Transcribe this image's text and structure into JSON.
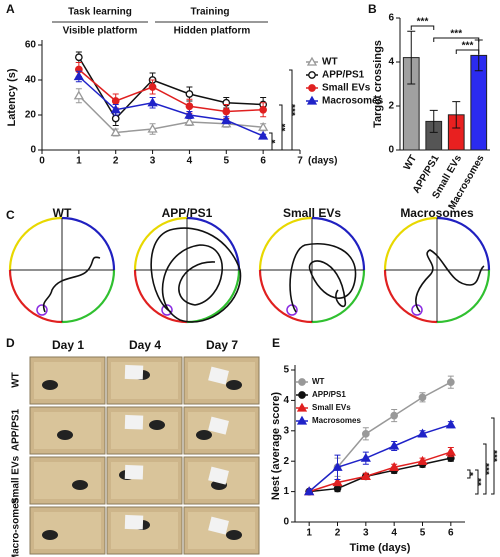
{
  "panels": [
    "A",
    "B",
    "C",
    "D",
    "E"
  ],
  "chart_data": [
    {
      "type": "line",
      "x": [
        1,
        2,
        3,
        4,
        5,
        6
      ],
      "xlim": [
        0,
        7
      ],
      "xticks": [
        0,
        1,
        2,
        3,
        4,
        5,
        6,
        7
      ],
      "x_label": "(days)",
      "y_label": "Latency (s)",
      "ylim": [
        0,
        60
      ],
      "yticks": [
        0,
        20,
        40,
        60
      ],
      "annotations": [
        "Task learning",
        "Visible platform",
        "Training",
        "Hidden platform"
      ],
      "significance": [
        "*",
        "**",
        "***"
      ],
      "series": [
        {
          "name": "WT",
          "color": "#999999",
          "marker": "triangle-open",
          "values": [
            31,
            10,
            12,
            16,
            15,
            13
          ],
          "errors": [
            4,
            2,
            3,
            2,
            2,
            2
          ]
        },
        {
          "name": "APP/PS1",
          "color": "#111111",
          "marker": "circle-open",
          "values": [
            53,
            18,
            40,
            32,
            27,
            26
          ],
          "errors": [
            3,
            4,
            4,
            4,
            3,
            4
          ]
        },
        {
          "name": "Small EVs",
          "color": "#e02020",
          "marker": "circle",
          "values": [
            46,
            28,
            36,
            25,
            22,
            23
          ],
          "errors": [
            4,
            4,
            4,
            4,
            4,
            4
          ]
        },
        {
          "name": "Macrosomes",
          "color": "#1f22c8",
          "marker": "triangle",
          "values": [
            42,
            23,
            27,
            20,
            17,
            8
          ],
          "errors": [
            3,
            3,
            3,
            2,
            2,
            1
          ]
        }
      ]
    },
    {
      "type": "bar",
      "categories": [
        "WT",
        "APP/PS1",
        "Small EVs",
        "Macrosomes"
      ],
      "values": [
        4.2,
        1.3,
        1.6,
        4.3
      ],
      "errors": [
        1.2,
        0.5,
        0.6,
        0.7
      ],
      "colors": [
        "#a0a0a0",
        "#555555",
        "#e82020",
        "#2b2bf0"
      ],
      "y_label": "Target crossings",
      "ylim": [
        0,
        6
      ],
      "yticks": [
        0,
        2,
        4,
        6
      ],
      "significance": [
        "***",
        "***",
        "***"
      ]
    },
    {
      "type": "line",
      "x": [
        1,
        2,
        3,
        4,
        5,
        6
      ],
      "xlim": [
        0.5,
        6.5
      ],
      "xticks": [
        1,
        2,
        3,
        4,
        5,
        6
      ],
      "x_label": "Time (days)",
      "y_label": "Nest (average score)",
      "ylim": [
        0,
        5
      ],
      "yticks": [
        0,
        1,
        2,
        3,
        4,
        5
      ],
      "significance": [
        "*",
        "**",
        "***",
        "***"
      ],
      "series": [
        {
          "name": "WT",
          "color": "#999999",
          "marker": "circle",
          "values": [
            1,
            1.8,
            2.9,
            3.5,
            4.1,
            4.6
          ],
          "errors": [
            0.05,
            0.3,
            0.2,
            0.2,
            0.15,
            0.2
          ]
        },
        {
          "name": "APP/PS1",
          "color": "#111111",
          "marker": "circle",
          "values": [
            1,
            1.1,
            1.5,
            1.7,
            1.9,
            2.1
          ],
          "errors": [
            0.05,
            0.1,
            0.1,
            0.1,
            0.1,
            0.1
          ]
        },
        {
          "name": "Small EVs",
          "color": "#e02020",
          "marker": "triangle",
          "values": [
            1,
            1.3,
            1.5,
            1.8,
            2.0,
            2.3
          ],
          "errors": [
            0.05,
            0.1,
            0.1,
            0.1,
            0.1,
            0.15
          ]
        },
        {
          "name": "Macrosomes",
          "color": "#1f22c8",
          "marker": "triangle",
          "values": [
            1,
            1.8,
            2.1,
            2.5,
            2.9,
            3.2
          ],
          "errors": [
            0.05,
            0.4,
            0.2,
            0.15,
            0.1,
            0.1
          ]
        }
      ]
    }
  ],
  "panel_c": {
    "titles": [
      "WT",
      "APP/PS1",
      "Small EVs",
      "Macrosomes"
    ]
  },
  "panel_d": {
    "columns": [
      "Day 1",
      "Day 4",
      "Day 7"
    ],
    "rows": [
      "WT",
      "APP/PS1",
      "Small EVs",
      "Macro-somes"
    ]
  }
}
